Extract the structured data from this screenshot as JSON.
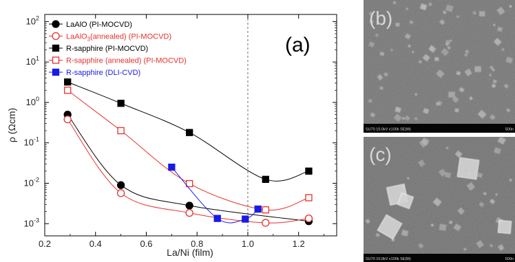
{
  "chart_data": [
    {
      "panel": "(a)",
      "type": "line",
      "xlabel": "La/Ni (film)",
      "ylabel": "ρ (Ωcm)",
      "xlim": [
        0.2,
        1.35
      ],
      "ylim": [
        0.0005,
        150
      ],
      "yscale": "log",
      "x_ticks": [
        "0.2",
        "0.4",
        "0.6",
        "0.8",
        "1.0",
        "1.2"
      ],
      "y_ticks": [
        {
          "base": "10",
          "exp": "-3"
        },
        {
          "base": "10",
          "exp": "-2"
        },
        {
          "base": "10",
          "exp": "-1"
        },
        {
          "base": "10",
          "exp": "0"
        },
        {
          "base": "10",
          "exp": "1"
        },
        {
          "base": "10",
          "exp": "2"
        }
      ],
      "vline_x": 1.0,
      "legend_position": "top-left",
      "series": [
        {
          "name": "LaAlO (PI-MOCVD)",
          "color": "#000000",
          "marker": "circle",
          "filled": true,
          "x": [
            0.29,
            0.5,
            0.77,
            1.24
          ],
          "y": [
            0.5,
            0.009,
            0.0028,
            0.00115
          ]
        },
        {
          "name_parts": [
            "LaAlO",
            "3",
            "(annealed) (PI-MOCVD)"
          ],
          "color": "#e8302a",
          "marker": "circle",
          "filled": false,
          "x": [
            0.29,
            0.5,
            0.77,
            1.07,
            1.24
          ],
          "y": [
            0.38,
            0.0057,
            0.00185,
            0.00105,
            0.00135
          ]
        },
        {
          "name": "R-sapphire (PI-MOCVD)",
          "color": "#000000",
          "marker": "square",
          "filled": true,
          "x": [
            0.29,
            0.5,
            0.77,
            1.07,
            1.24
          ],
          "y": [
            3.2,
            0.95,
            0.18,
            0.0125,
            0.02
          ]
        },
        {
          "name": "R-sapphire (annealed) (PI-MOCVD)",
          "color": "#e8302a",
          "marker": "square",
          "filled": false,
          "x": [
            0.29,
            0.5,
            0.77,
            1.07,
            1.24
          ],
          "y": [
            2.0,
            0.2,
            0.0098,
            0.0022,
            0.0044
          ]
        },
        {
          "name": "R-sapphire (DLI-CVD)",
          "color": "#1a1ae6",
          "marker": "square",
          "filled": true,
          "x": [
            0.7,
            0.88,
            0.99,
            1.04
          ],
          "y": [
            0.025,
            0.00135,
            0.0013,
            0.0023
          ]
        }
      ]
    }
  ],
  "sem_panels": [
    {
      "label": "(b)",
      "caption": "SU70 10.0kV x100k SE(M)",
      "scale": "500n"
    },
    {
      "label": "(c)",
      "caption": "SU70 10.0kV x100k SE(M)",
      "scale": "500n"
    }
  ],
  "colors": {
    "black": "#000000",
    "red": "#e8302a",
    "blue": "#1a1ae6",
    "sem_bg": "#6b6b6b"
  }
}
